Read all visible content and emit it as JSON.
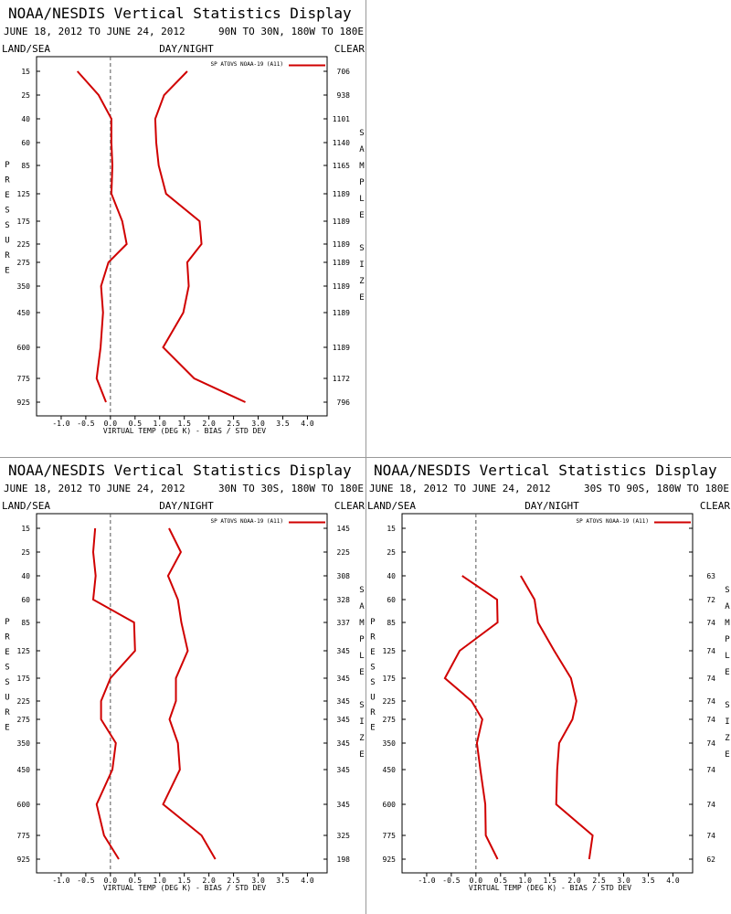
{
  "chart_data": [
    {
      "type": "line",
      "title": "NOAA/NESDIS Vertical Statistics Display",
      "subtitle": "JUNE 18, 2012 TO JUNE 24, 2012",
      "region": "90N TO 30N, 180W TO 180E",
      "header_labels": [
        "LAND/SEA",
        "DAY/NIGHT",
        "CLEAR"
      ],
      "y_label": "PRESSURE",
      "y2_label": "SAMPLE SIZE",
      "x_label": "VIRTUAL TEMP (DEG K) - BIAS / STD DEV",
      "categories": [
        "15",
        "25",
        "40",
        "60",
        "85",
        "125",
        "175",
        "225",
        "275",
        "350",
        "450",
        "600",
        "775",
        "925"
      ],
      "series": [
        {
          "name": "SP ATOVS NOAA-19 (A11)",
          "color": "#d00000",
          "values": [
            -0.67,
            -0.24,
            0.02,
            0.02,
            0.04,
            0.02,
            0.24,
            0.33,
            -0.04,
            -0.19,
            -0.15,
            -0.2,
            -0.28,
            -0.09
          ]
        },
        {
          "color": "#d00000",
          "values": [
            1.56,
            1.09,
            0.91,
            0.93,
            0.98,
            1.13,
            1.81,
            1.85,
            1.56,
            1.59,
            1.48,
            1.07,
            1.7,
            2.74
          ]
        }
      ],
      "sample_size": [
        706,
        938,
        1101,
        1140,
        1165,
        1189,
        1189,
        1189,
        1189,
        1189,
        1189,
        1189,
        1172,
        796
      ],
      "xlim": [
        -1.5,
        4.4
      ],
      "xticks": [
        {
          "value": -1,
          "label": "-1.0"
        },
        {
          "value": -0.5,
          "label": "-0.5"
        },
        {
          "value": 0,
          "label": "0.0"
        },
        0.5,
        {
          "value": 1,
          "label": "1.0"
        },
        1.5,
        {
          "value": 2,
          "label": "2.0"
        },
        2.5,
        {
          "value": 3,
          "label": "3.0"
        },
        3.5,
        {
          "value": 4,
          "label": "4.0"
        }
      ]
    },
    {
      "type": "line",
      "title": "NOAA/NESDIS Vertical Statistics Display",
      "subtitle": "JUNE 18, 2012 TO JUNE 24, 2012",
      "region": "30N TO 30S, 180W TO 180E",
      "header_labels": [
        "LAND/SEA",
        "DAY/NIGHT",
        "CLEAR"
      ],
      "y_label": "PRESSURE",
      "y2_label": "SAMPLE SIZE",
      "x_label": "VIRTUAL TEMP (DEG K) - BIAS / STD DEV",
      "categories": [
        "15",
        "25",
        "40",
        "60",
        "85",
        "125",
        "175",
        "225",
        "275",
        "350",
        "450",
        "600",
        "775",
        "925"
      ],
      "series": [
        {
          "name": "SP ATOVS NOAA-19 (A11)",
          "color": "#d00000",
          "values": [
            -0.31,
            -0.35,
            -0.3,
            -0.35,
            0.48,
            0.5,
            0.0,
            -0.19,
            -0.19,
            0.11,
            0.04,
            -0.28,
            -0.13,
            0.17
          ]
        },
        {
          "color": "#d00000",
          "values": [
            1.19,
            1.43,
            1.17,
            1.37,
            1.44,
            1.57,
            1.33,
            1.33,
            1.2,
            1.37,
            1.41,
            1.07,
            1.85,
            2.13
          ]
        }
      ],
      "sample_size": [
        145,
        225,
        308,
        328,
        337,
        345,
        345,
        345,
        345,
        345,
        345,
        345,
        325,
        198
      ],
      "xlim": [
        -1.5,
        4.4
      ],
      "xticks": [
        {
          "value": -1,
          "label": "-1.0"
        },
        {
          "value": -0.5,
          "label": "-0.5"
        },
        {
          "value": 0,
          "label": "0.0"
        },
        0.5,
        {
          "value": 1,
          "label": "1.0"
        },
        1.5,
        {
          "value": 2,
          "label": "2.0"
        },
        2.5,
        {
          "value": 3,
          "label": "3.0"
        },
        3.5,
        {
          "value": 4,
          "label": "4.0"
        }
      ]
    },
    {
      "type": "line",
      "title": "NOAA/NESDIS Vertical Statistics Display",
      "subtitle": "JUNE 18, 2012 TO JUNE 24, 2012",
      "region": "30S TO 90S, 180W TO 180E",
      "header_labels": [
        "LAND/SEA",
        "DAY/NIGHT",
        "CLEAR"
      ],
      "y_label": "PRESSURE",
      "y2_label": "SAMPLE SIZE",
      "x_label": "VIRTUAL TEMP (DEG K) - BIAS / STD DEV",
      "categories": [
        "15",
        "25",
        "40",
        "60",
        "85",
        "125",
        "175",
        "225",
        "275",
        "350",
        "450",
        "600",
        "775",
        "925"
      ],
      "series": [
        {
          "name": "SP ATOVS NOAA-19 (A11)",
          "color": "#d00000",
          "values": [
            null,
            null,
            -0.28,
            0.43,
            0.44,
            -0.33,
            -0.63,
            -0.09,
            0.13,
            0.02,
            0.09,
            0.19,
            0.2,
            0.44
          ]
        },
        {
          "color": "#d00000",
          "values": [
            null,
            null,
            0.91,
            1.19,
            1.26,
            1.59,
            1.93,
            2.04,
            1.96,
            1.69,
            1.65,
            1.63,
            2.37,
            2.3
          ]
        }
      ],
      "sample_size": [
        null,
        null,
        63,
        72,
        74,
        74,
        74,
        74,
        74,
        74,
        74,
        74,
        74,
        62
      ],
      "xlim": [
        -1.5,
        4.4
      ],
      "xticks": [
        {
          "value": -1,
          "label": "-1.0"
        },
        {
          "value": -0.5,
          "label": "-0.5"
        },
        {
          "value": 0,
          "label": "0.0"
        },
        0.5,
        {
          "value": 1,
          "label": "1.0"
        },
        1.5,
        {
          "value": 2,
          "label": "2.0"
        },
        2.5,
        {
          "value": 3,
          "label": "3.0"
        },
        3.5,
        {
          "value": 4,
          "label": "4.0"
        }
      ]
    }
  ]
}
